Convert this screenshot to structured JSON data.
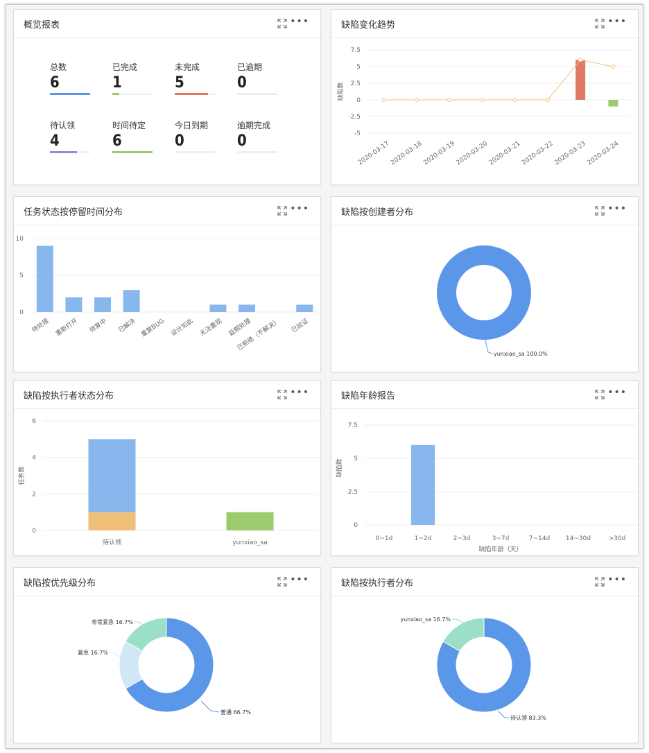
{
  "colors": {
    "blue": "#5b97e9",
    "lightblue": "#88b7ee",
    "green": "#9bcb6c",
    "red": "#e07a67",
    "orange": "#f0c07a",
    "purple": "#8c8fd6",
    "teal": "#9be0c6",
    "paleblue": "#d1e7f6"
  },
  "cards": {
    "overview": {
      "title": "概览报表",
      "stats": [
        {
          "label": "总数",
          "value": "6",
          "fill": 1.0,
          "color": "#5b97e9"
        },
        {
          "label": "已完成",
          "value": "1",
          "fill": 0.17,
          "color": "#9bcb6c"
        },
        {
          "label": "未完成",
          "value": "5",
          "fill": 0.83,
          "color": "#e07a67"
        },
        {
          "label": "已逾期",
          "value": "0",
          "fill": 0,
          "color": "#e07a67"
        },
        {
          "label": "待认领",
          "value": "4",
          "fill": 0.67,
          "color": "#8c8fd6"
        },
        {
          "label": "时间待定",
          "value": "6",
          "fill": 1.0,
          "color": "#9bcb6c"
        },
        {
          "label": "今日到期",
          "value": "0",
          "fill": 0,
          "color": "#e07a67"
        },
        {
          "label": "逾期完成",
          "value": "0",
          "fill": 0,
          "color": "#e07a67"
        }
      ]
    },
    "trend": {
      "title": "缺陷变化趋势"
    },
    "stay": {
      "title": "任务状态按停留时间分布"
    },
    "creator": {
      "title": "缺陷按创建者分布"
    },
    "assignee_status": {
      "title": "缺陷按执行者状态分布"
    },
    "age": {
      "title": "缺陷年龄报告"
    },
    "priority": {
      "title": "缺陷按优先级分布"
    },
    "assignee": {
      "title": "缺陷按执行者分布"
    }
  },
  "chart_data": [
    {
      "id": "trend",
      "type": "bar+line",
      "title": "缺陷变化趋势",
      "ylabel": "缺陷数",
      "categories": [
        "2020-03-17",
        "2020-03-18",
        "2020-03-19",
        "2020-03-20",
        "2020-03-21",
        "2020-03-22",
        "2020-03-23",
        "2020-03-24"
      ],
      "series": [
        {
          "type": "bar",
          "values": [
            0,
            0,
            0,
            0,
            0,
            0,
            6,
            -1
          ],
          "colors": [
            "#e07a67",
            "#e07a67",
            "#e07a67",
            "#e07a67",
            "#e07a67",
            "#e07a67",
            "#e07a67",
            "#9bcb6c"
          ]
        },
        {
          "type": "line",
          "values": [
            0,
            0,
            0,
            0,
            0,
            0,
            6,
            5
          ],
          "color": "#f0c07a"
        }
      ],
      "yticks": [
        "7.5",
        "5",
        "2.5",
        "0",
        "-2.5",
        "-5"
      ],
      "ylim": [
        -5,
        7.5
      ]
    },
    {
      "id": "stay",
      "type": "bar",
      "title": "任务状态按停留时间分布",
      "categories": [
        "待处理",
        "重新打开",
        "修复中",
        "已解决",
        "重复BUG",
        "设计如此",
        "无法重现",
        "延期处理",
        "已拒绝（不解决）",
        "已验证"
      ],
      "values": [
        9,
        2,
        2,
        3,
        0,
        0,
        1,
        1,
        0,
        1
      ],
      "yticks": [
        "10",
        "5",
        "0"
      ],
      "ylim": [
        0,
        10
      ]
    },
    {
      "id": "creator",
      "type": "pie",
      "title": "缺陷按创建者分布",
      "slices": [
        {
          "name": "yunxiao_sa",
          "value": 100.0,
          "label": "yunxiao_sa 100.0%",
          "color": "#5b97e9"
        }
      ]
    },
    {
      "id": "assignee_status",
      "type": "bar",
      "title": "缺陷按执行者状态分布",
      "ylabel": "任务数",
      "categories": [
        "待认领",
        "yunxiao_sa"
      ],
      "series": [
        {
          "values": [
            1,
            0
          ],
          "color": "#f0c07a"
        },
        {
          "values": [
            4,
            0
          ],
          "color": "#88b7ee"
        },
        {
          "values": [
            0,
            1
          ],
          "color": "#9bcb6c"
        }
      ],
      "yticks": [
        "6",
        "4",
        "2",
        "0"
      ],
      "ylim": [
        0,
        6
      ]
    },
    {
      "id": "age",
      "type": "bar",
      "title": "缺陷年龄报告",
      "xlabel": "缺陷年龄（天）",
      "ylabel": "缺陷数",
      "categories": [
        "0~1d",
        "1~2d",
        "2~3d",
        "3~7d",
        "7~14d",
        "14~30d",
        ">30d"
      ],
      "values": [
        0,
        6,
        0,
        0,
        0,
        0,
        0
      ],
      "yticks": [
        "7.5",
        "5",
        "2.5",
        "0"
      ],
      "ylim": [
        0,
        7.5
      ]
    },
    {
      "id": "priority",
      "type": "pie",
      "title": "缺陷按优先级分布",
      "slices": [
        {
          "name": "普通",
          "value": 66.7,
          "label": "普通 66.7%",
          "color": "#5b97e9"
        },
        {
          "name": "紧急",
          "value": 16.7,
          "label": "紧急 16.7%",
          "color": "#d1e7f6"
        },
        {
          "name": "非常紧急",
          "value": 16.7,
          "label": "非常紧急 16.7%",
          "color": "#9be0c6"
        }
      ]
    },
    {
      "id": "assignee",
      "type": "pie",
      "title": "缺陷按执行者分布",
      "slices": [
        {
          "name": "待认领",
          "value": 83.3,
          "label": "待认领 83.3%",
          "color": "#5b97e9"
        },
        {
          "name": "yunxiao_sa",
          "value": 16.7,
          "label": "yunxiao_sa 16.7%",
          "color": "#9be0c6"
        }
      ]
    }
  ]
}
